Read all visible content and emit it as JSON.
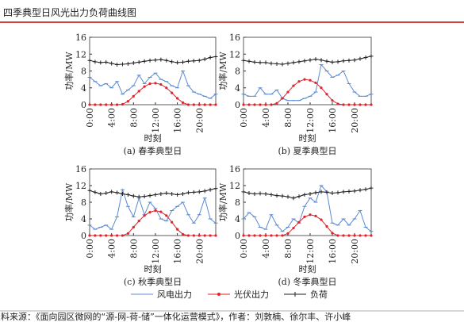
{
  "header": {
    "title": "四季典型日风光出力负荷曲线图"
  },
  "legend": [
    {
      "name": "风电出力",
      "color": "#5b8bd0"
    },
    {
      "name": "光伏出力",
      "color": "#e0232b"
    },
    {
      "name": "负荷",
      "color": "#222222"
    }
  ],
  "source": "资料来源：《面向园区微网的“源-网-荷-储”一体化运营模式》，作者：刘敦楠、徐尔丰、许小峰",
  "chart_data": [
    {
      "type": "line",
      "title": "(a) 春季典型日",
      "xlabel": "时刻",
      "ylabel": "功率/MW",
      "x": [
        0,
        1,
        2,
        3,
        4,
        5,
        6,
        7,
        8,
        9,
        10,
        11,
        12,
        13,
        14,
        15,
        16,
        17,
        18,
        19,
        20,
        21,
        22,
        23
      ],
      "xlim": [
        0,
        23
      ],
      "xticks": [
        {
          "value": 0,
          "label": "0:00"
        },
        {
          "value": 4,
          "label": "4:00"
        },
        {
          "value": 8,
          "label": "8:00"
        },
        {
          "value": 12,
          "label": "12:00"
        },
        {
          "value": 16,
          "label": "16:00"
        },
        {
          "value": 20,
          "label": "20:00"
        }
      ],
      "ylim": [
        0,
        16
      ],
      "yticks": [
        0,
        4,
        8,
        12,
        16
      ],
      "series": [
        {
          "color": "#5b8bd0",
          "values": [
            6.5,
            5.5,
            4.5,
            5.0,
            4.0,
            5.5,
            2.5,
            3.5,
            4.5,
            7.0,
            5.0,
            6.5,
            7.5,
            6.0,
            5.5,
            4.5,
            4.0,
            8.0,
            4.5,
            3.0,
            2.5,
            2.0,
            1.5,
            2.5
          ]
        },
        {
          "color": "#e0232b",
          "values": [
            0,
            0,
            0,
            0,
            0,
            0,
            0.1,
            0.8,
            2.0,
            3.2,
            4.3,
            5.0,
            5.1,
            4.8,
            4.0,
            2.8,
            1.5,
            0.5,
            0,
            0,
            0,
            0,
            0,
            0
          ]
        },
        {
          "color": "#222222",
          "values": [
            10.5,
            10.2,
            10.0,
            10.1,
            9.8,
            9.5,
            9.6,
            9.7,
            9.9,
            10.1,
            10.3,
            10.5,
            10.6,
            10.7,
            10.5,
            10.2,
            10.0,
            10.1,
            10.3,
            10.4,
            10.5,
            10.8,
            11.2,
            11.4
          ]
        }
      ]
    },
    {
      "type": "line",
      "title": "(b) 夏季典型日",
      "xlabel": "时刻",
      "ylabel": "功率/MW",
      "x": [
        0,
        1,
        2,
        3,
        4,
        5,
        6,
        7,
        8,
        9,
        10,
        11,
        12,
        13,
        14,
        15,
        16,
        17,
        18,
        19,
        20,
        21,
        22,
        23
      ],
      "xlim": [
        0,
        23
      ],
      "xticks": [
        {
          "value": 0,
          "label": "0:00"
        },
        {
          "value": 4,
          "label": "4:00"
        },
        {
          "value": 8,
          "label": "8:00"
        },
        {
          "value": 12,
          "label": "12:00"
        },
        {
          "value": 16,
          "label": "16:00"
        },
        {
          "value": 20,
          "label": "20:00"
        }
      ],
      "ylim": [
        0,
        16
      ],
      "yticks": [
        0,
        4,
        8,
        12,
        16
      ],
      "series": [
        {
          "color": "#5b8bd0",
          "values": [
            2.5,
            2.0,
            2.0,
            4.0,
            2.5,
            2.5,
            3.5,
            1.5,
            1.0,
            1.0,
            1.0,
            1.5,
            2.0,
            3.0,
            9.5,
            8.0,
            6.5,
            7.0,
            8.0,
            5.0,
            3.0,
            2.0,
            2.0,
            2.5
          ]
        },
        {
          "color": "#e0232b",
          "values": [
            0,
            0,
            0,
            0,
            0,
            0,
            0.3,
            1.5,
            3.0,
            4.5,
            5.5,
            6.0,
            5.8,
            5.2,
            4.0,
            2.5,
            1.0,
            0.2,
            0,
            0,
            0,
            0,
            0,
            0
          ]
        },
        {
          "color": "#222222",
          "values": [
            10.5,
            10.3,
            10.1,
            10.0,
            10.0,
            9.8,
            9.7,
            9.6,
            9.8,
            10.0,
            10.2,
            10.4,
            10.6,
            10.8,
            10.6,
            10.3,
            10.1,
            10.2,
            10.4,
            10.5,
            10.6,
            10.9,
            11.2,
            11.5
          ]
        }
      ]
    },
    {
      "type": "line",
      "title": "(c) 秋季典型日",
      "xlabel": "时刻",
      "ylabel": "功率/MW",
      "x": [
        0,
        1,
        2,
        3,
        4,
        5,
        6,
        7,
        8,
        9,
        10,
        11,
        12,
        13,
        14,
        15,
        16,
        17,
        18,
        19,
        20,
        21,
        22,
        23
      ],
      "xlim": [
        0,
        23
      ],
      "xticks": [
        {
          "value": 0,
          "label": "0:00"
        },
        {
          "value": 4,
          "label": "4:00"
        },
        {
          "value": 8,
          "label": "8:00"
        },
        {
          "value": 12,
          "label": "12:00"
        },
        {
          "value": 16,
          "label": "16:00"
        },
        {
          "value": 20,
          "label": "20:00"
        }
      ],
      "ylim": [
        0,
        16
      ],
      "yticks": [
        0,
        4,
        8,
        12,
        16
      ],
      "series": [
        {
          "color": "#5b8bd0",
          "values": [
            2.5,
            1.5,
            2.0,
            2.5,
            1.5,
            4.5,
            11.0,
            7.0,
            4.5,
            9.0,
            5.0,
            8.0,
            6.5,
            4.0,
            3.5,
            6.0,
            7.0,
            8.0,
            5.0,
            3.0,
            5.0,
            9.0,
            4.0,
            3.0
          ]
        },
        {
          "color": "#e0232b",
          "values": [
            0,
            0,
            0,
            0,
            0,
            0,
            0,
            0.5,
            2.0,
            3.5,
            4.8,
            5.6,
            6.0,
            5.7,
            4.8,
            3.2,
            1.5,
            0.3,
            0,
            0,
            0,
            0,
            0,
            0
          ]
        },
        {
          "color": "#222222",
          "values": [
            10.8,
            10.4,
            10.0,
            10.2,
            10.5,
            10.3,
            10.0,
            9.8,
            9.5,
            9.3,
            9.4,
            9.6,
            9.8,
            10.0,
            10.2,
            10.0,
            9.8,
            10.0,
            10.3,
            10.4,
            10.5,
            10.7,
            11.0,
            11.3
          ]
        }
      ]
    },
    {
      "type": "line",
      "title": "(d) 冬季典型日",
      "xlabel": "时刻",
      "ylabel": "功率/MW",
      "x": [
        0,
        1,
        2,
        3,
        4,
        5,
        6,
        7,
        8,
        9,
        10,
        11,
        12,
        13,
        14,
        15,
        16,
        17,
        18,
        19,
        20,
        21,
        22,
        23
      ],
      "xlim": [
        0,
        23
      ],
      "xticks": [
        {
          "value": 0,
          "label": "0:00"
        },
        {
          "value": 4,
          "label": "4:00"
        },
        {
          "value": 8,
          "label": "8:00"
        },
        {
          "value": 12,
          "label": "12:00"
        },
        {
          "value": 16,
          "label": "16:00"
        },
        {
          "value": 20,
          "label": "20:00"
        }
      ],
      "ylim": [
        0,
        16
      ],
      "yticks": [
        0,
        4,
        8,
        12,
        16
      ],
      "series": [
        {
          "color": "#5b8bd0",
          "values": [
            4.0,
            5.5,
            4.5,
            2.0,
            1.5,
            5.0,
            2.5,
            1.0,
            2.0,
            4.0,
            3.0,
            7.0,
            9.0,
            8.0,
            12.0,
            10.5,
            3.0,
            2.5,
            4.0,
            2.5,
            4.0,
            6.0,
            2.0,
            1.0
          ]
        },
        {
          "color": "#e0232b",
          "values": [
            0,
            0,
            0,
            0,
            0,
            0,
            0,
            0,
            0.5,
            1.8,
            3.2,
            4.5,
            5.0,
            4.7,
            3.8,
            2.2,
            0.6,
            0,
            0,
            0,
            0,
            0,
            0,
            0
          ]
        },
        {
          "color": "#222222",
          "values": [
            10.5,
            10.2,
            10.0,
            10.1,
            10.0,
            9.8,
            9.6,
            9.5,
            9.3,
            9.0,
            9.4,
            9.8,
            10.0,
            10.3,
            10.5,
            10.4,
            10.2,
            10.3,
            10.5,
            10.6,
            10.7,
            10.9,
            11.1,
            11.4
          ]
        }
      ]
    }
  ]
}
